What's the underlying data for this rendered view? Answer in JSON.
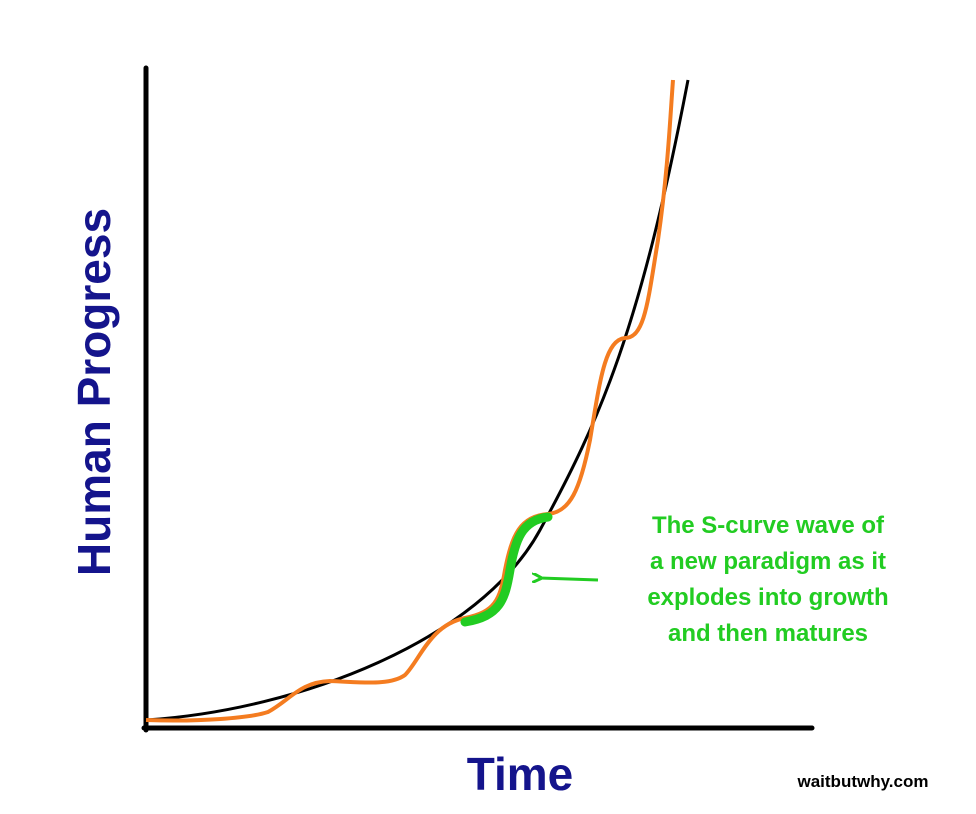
{
  "y_axis_label": "Human Progress",
  "x_axis_label": "Time",
  "annotation": {
    "lines": [
      "The S-curve wave of",
      "a new paradigm as it",
      "explodes into growth",
      "and then matures"
    ]
  },
  "credit": "waitbutwhy.com"
}
